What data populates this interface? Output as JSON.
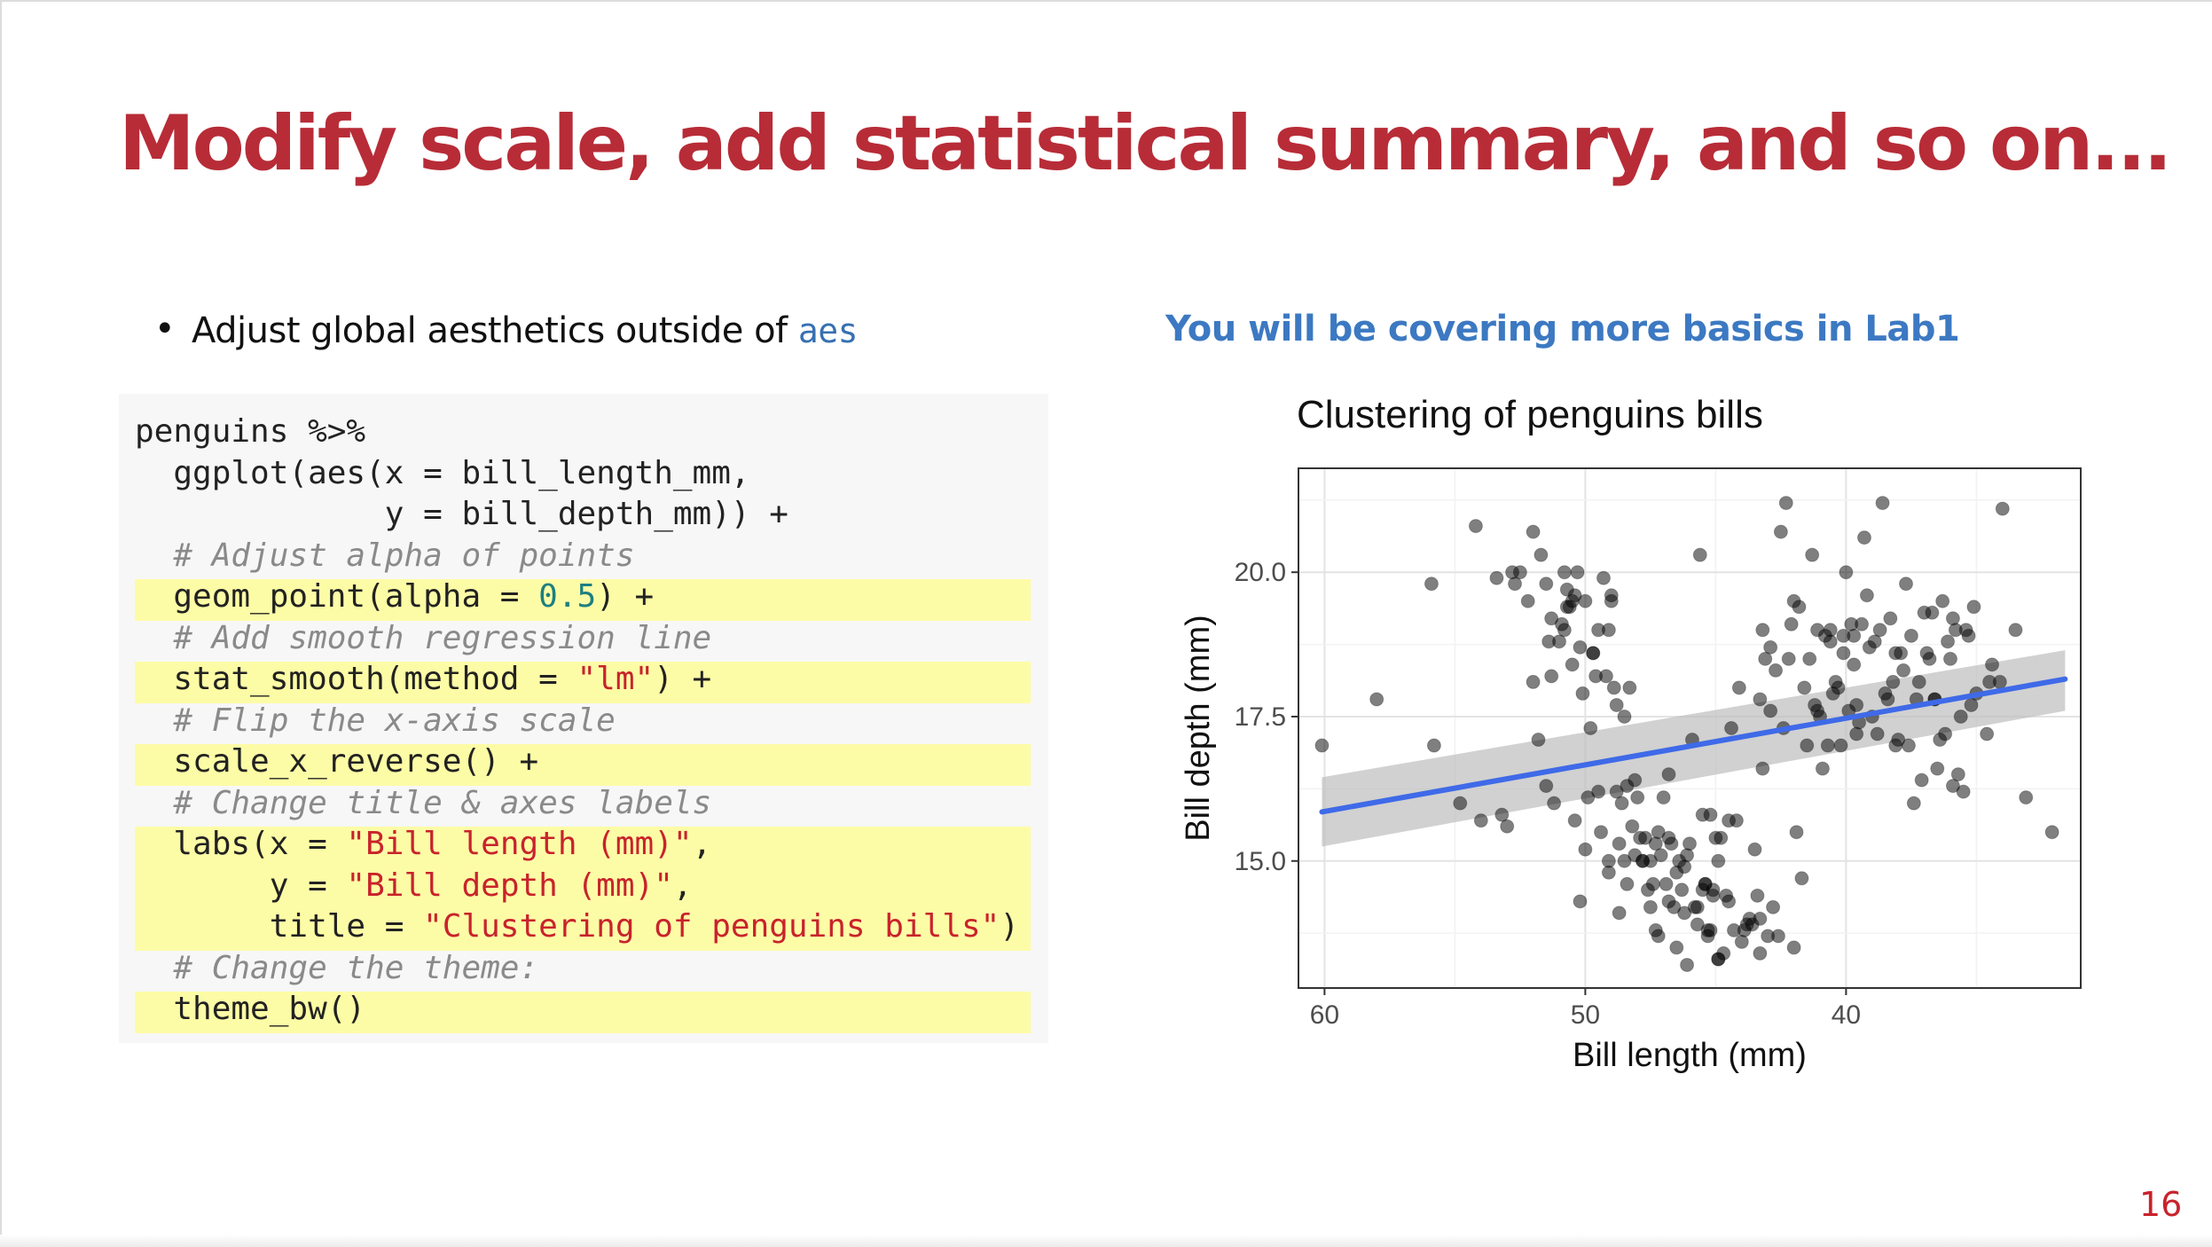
{
  "slide": {
    "title": "Modify scale, add statistical summary, and so on...",
    "page_number": "16"
  },
  "left": {
    "bullet_text": "Adjust global aesthetics outside of",
    "bullet_code": "aes",
    "code_lines": [
      {
        "parts": [
          {
            "t": "penguins %>%",
            "c": "plain"
          }
        ],
        "highlight": false
      },
      {
        "parts": [
          {
            "t": "  ggplot(aes(x = bill_length_mm,",
            "c": "plain"
          }
        ],
        "highlight": false
      },
      {
        "parts": [
          {
            "t": "             y = bill_depth_mm)) +",
            "c": "plain"
          }
        ],
        "highlight": false
      },
      {
        "parts": [
          {
            "t": "  # Adjust alpha of points",
            "c": "comment"
          }
        ],
        "highlight": false
      },
      {
        "parts": [
          {
            "t": "  geom_point(alpha = ",
            "c": "plain"
          },
          {
            "t": "0.5",
            "c": "number"
          },
          {
            "t": ") +",
            "c": "plain"
          }
        ],
        "highlight": true
      },
      {
        "parts": [
          {
            "t": "  # Add smooth regression line",
            "c": "comment"
          }
        ],
        "highlight": false
      },
      {
        "parts": [
          {
            "t": "  stat_smooth(method = ",
            "c": "plain"
          },
          {
            "t": "\"lm\"",
            "c": "string"
          },
          {
            "t": ") +",
            "c": "plain"
          }
        ],
        "highlight": true
      },
      {
        "parts": [
          {
            "t": "  # Flip the x-axis scale",
            "c": "comment"
          }
        ],
        "highlight": false
      },
      {
        "parts": [
          {
            "t": "  scale_x_reverse() +",
            "c": "plain"
          }
        ],
        "highlight": true
      },
      {
        "parts": [
          {
            "t": "  # Change title & axes labels",
            "c": "comment"
          }
        ],
        "highlight": false
      },
      {
        "parts": [
          {
            "t": "  labs(x = ",
            "c": "plain"
          },
          {
            "t": "\"Bill length (mm)\"",
            "c": "string"
          },
          {
            "t": ",",
            "c": "plain"
          }
        ],
        "highlight": true
      },
      {
        "parts": [
          {
            "t": "       y = ",
            "c": "plain"
          },
          {
            "t": "\"Bill depth (mm)\"",
            "c": "string"
          },
          {
            "t": ",",
            "c": "plain"
          }
        ],
        "highlight": true
      },
      {
        "parts": [
          {
            "t": "       title = ",
            "c": "plain"
          },
          {
            "t": "\"Clustering of penguins bills\"",
            "c": "string"
          },
          {
            "t": ")",
            "c": "plain"
          }
        ],
        "highlight": true
      },
      {
        "parts": [
          {
            "t": "  # Change the theme:",
            "c": "comment"
          }
        ],
        "highlight": false
      },
      {
        "parts": [
          {
            "t": "  theme_bw()",
            "c": "plain"
          }
        ],
        "highlight": true
      }
    ]
  },
  "right": {
    "heading": "You will be covering more basics in Lab1"
  },
  "colors": {
    "title": "#b72c37",
    "heading": "#3c79c2",
    "code_string": "#c8232c",
    "code_number": "#1e7f80",
    "code_comment": "#8a8a8a",
    "highlight": "#fdfca6",
    "smooth_line": "#3f6ae8",
    "ribbon": "#bdbdbd"
  },
  "chart_data": {
    "type": "scatter",
    "title": "Clustering of penguins bills",
    "xlabel": "Bill length (mm)",
    "ylabel": "Bill depth (mm)",
    "x_reversed": true,
    "xlim": [
      61,
      31.0
    ],
    "ylim": [
      12.8,
      21.8
    ],
    "x_ticks": [
      60,
      50,
      40
    ],
    "y_ticks": [
      15.0,
      17.5,
      20.0
    ],
    "y_tick_labels": [
      "15.0",
      "17.5",
      "20.0"
    ],
    "grid": true,
    "point_alpha": 0.5,
    "smooth": {
      "method": "lm",
      "x": [
        60.1,
        31.6
      ],
      "y": [
        15.85,
        18.15
      ],
      "ci_upper": [
        16.45,
        18.65
      ],
      "ci_lower": [
        15.25,
        17.6
      ]
    },
    "points": [
      [
        60.1,
        17.0
      ],
      [
        58.0,
        17.8
      ],
      [
        55.9,
        19.8
      ],
      [
        55.8,
        17.0
      ],
      [
        54.8,
        16.0
      ],
      [
        54.2,
        20.8
      ],
      [
        54.0,
        15.7
      ],
      [
        53.4,
        19.9
      ],
      [
        53.2,
        15.8
      ],
      [
        53.0,
        15.6
      ],
      [
        52.8,
        20.0
      ],
      [
        52.5,
        20.0
      ],
      [
        52.2,
        19.5
      ],
      [
        52.0,
        20.7
      ],
      [
        51.8,
        17.1
      ],
      [
        51.7,
        20.3
      ],
      [
        51.5,
        19.8
      ],
      [
        51.4,
        18.8
      ],
      [
        51.3,
        19.2
      ],
      [
        51.2,
        16.0
      ],
      [
        51.0,
        18.8
      ],
      [
        50.9,
        19.1
      ],
      [
        50.8,
        20.0
      ],
      [
        50.7,
        19.7
      ],
      [
        50.6,
        19.4
      ],
      [
        50.5,
        19.5
      ],
      [
        50.4,
        15.7
      ],
      [
        50.3,
        20.0
      ],
      [
        50.2,
        18.7
      ],
      [
        50.1,
        17.9
      ],
      [
        50.0,
        19.5
      ],
      [
        49.9,
        16.1
      ],
      [
        49.8,
        17.3
      ],
      [
        49.7,
        18.6
      ],
      [
        49.6,
        18.2
      ],
      [
        49.5,
        19.0
      ],
      [
        49.4,
        15.5
      ],
      [
        49.3,
        19.9
      ],
      [
        49.2,
        18.2
      ],
      [
        49.1,
        19.0
      ],
      [
        49.0,
        19.5
      ],
      [
        48.9,
        18.0
      ],
      [
        48.8,
        17.7
      ],
      [
        48.7,
        15.3
      ],
      [
        48.6,
        16.0
      ],
      [
        48.5,
        17.5
      ],
      [
        48.4,
        16.3
      ],
      [
        48.3,
        18.0
      ],
      [
        48.2,
        15.6
      ],
      [
        48.1,
        16.4
      ],
      [
        48.0,
        16.1
      ],
      [
        47.9,
        15.4
      ],
      [
        47.8,
        15.0
      ],
      [
        47.7,
        15.4
      ],
      [
        47.6,
        14.5
      ],
      [
        47.5,
        15.0
      ],
      [
        47.4,
        14.6
      ],
      [
        47.3,
        13.8
      ],
      [
        47.2,
        15.5
      ],
      [
        47.1,
        15.1
      ],
      [
        47.0,
        16.1
      ],
      [
        46.9,
        14.6
      ],
      [
        46.8,
        16.5
      ],
      [
        46.7,
        15.3
      ],
      [
        46.6,
        14.2
      ],
      [
        46.5,
        14.8
      ],
      [
        46.4,
        15.0
      ],
      [
        46.3,
        14.5
      ],
      [
        46.2,
        14.1
      ],
      [
        46.1,
        15.1
      ],
      [
        46.0,
        15.3
      ],
      [
        45.9,
        17.1
      ],
      [
        45.8,
        14.2
      ],
      [
        45.7,
        13.9
      ],
      [
        45.6,
        20.3
      ],
      [
        45.5,
        15.8
      ],
      [
        45.4,
        14.6
      ],
      [
        45.3,
        13.7
      ],
      [
        45.2,
        15.8
      ],
      [
        45.1,
        14.5
      ],
      [
        45.0,
        15.4
      ],
      [
        44.9,
        13.3
      ],
      [
        44.8,
        15.4
      ],
      [
        44.7,
        13.4
      ],
      [
        44.6,
        14.4
      ],
      [
        44.5,
        15.7
      ],
      [
        44.4,
        17.3
      ],
      [
        44.3,
        13.8
      ],
      [
        44.2,
        15.7
      ],
      [
        44.1,
        18.0
      ],
      [
        44.0,
        13.6
      ],
      [
        43.9,
        13.8
      ],
      [
        43.8,
        13.9
      ],
      [
        43.7,
        14.0
      ],
      [
        43.6,
        13.9
      ],
      [
        43.5,
        15.2
      ],
      [
        43.4,
        14.4
      ],
      [
        43.3,
        13.4
      ],
      [
        43.2,
        16.6
      ],
      [
        43.1,
        18.5
      ],
      [
        43.0,
        13.7
      ],
      [
        42.9,
        17.6
      ],
      [
        42.8,
        14.2
      ],
      [
        42.7,
        18.3
      ],
      [
        42.6,
        13.7
      ],
      [
        42.5,
        20.7
      ],
      [
        42.4,
        17.3
      ],
      [
        42.3,
        21.2
      ],
      [
        42.2,
        18.5
      ],
      [
        42.1,
        19.1
      ],
      [
        42.0,
        13.5
      ],
      [
        41.9,
        15.5
      ],
      [
        41.8,
        19.4
      ],
      [
        41.7,
        14.7
      ],
      [
        41.6,
        18.0
      ],
      [
        41.5,
        17.0
      ],
      [
        41.4,
        18.5
      ],
      [
        41.3,
        20.3
      ],
      [
        41.2,
        17.7
      ],
      [
        41.1,
        19.0
      ],
      [
        41.0,
        17.5
      ],
      [
        40.9,
        16.6
      ],
      [
        40.8,
        18.9
      ],
      [
        40.7,
        17.0
      ],
      [
        40.6,
        19.0
      ],
      [
        40.5,
        17.9
      ],
      [
        40.4,
        18.1
      ],
      [
        40.3,
        18.0
      ],
      [
        40.2,
        17.0
      ],
      [
        40.1,
        18.9
      ],
      [
        40.0,
        20.0
      ],
      [
        39.9,
        17.6
      ],
      [
        39.8,
        19.1
      ],
      [
        39.7,
        18.9
      ],
      [
        39.6,
        17.2
      ],
      [
        39.5,
        17.4
      ],
      [
        39.4,
        19.1
      ],
      [
        39.3,
        20.6
      ],
      [
        39.2,
        19.6
      ],
      [
        39.1,
        18.7
      ],
      [
        39.0,
        17.5
      ],
      [
        38.9,
        18.8
      ],
      [
        38.8,
        17.2
      ],
      [
        38.7,
        19.0
      ],
      [
        38.6,
        21.2
      ],
      [
        38.5,
        17.9
      ],
      [
        38.4,
        17.8
      ],
      [
        38.3,
        19.2
      ],
      [
        38.2,
        18.1
      ],
      [
        38.1,
        17.0
      ],
      [
        38.0,
        17.1
      ],
      [
        37.9,
        18.6
      ],
      [
        37.8,
        18.3
      ],
      [
        37.7,
        19.8
      ],
      [
        37.6,
        17.0
      ],
      [
        37.5,
        18.9
      ],
      [
        37.4,
        16.0
      ],
      [
        37.3,
        17.8
      ],
      [
        37.2,
        18.1
      ],
      [
        37.1,
        16.4
      ],
      [
        37.0,
        19.3
      ],
      [
        36.9,
        18.6
      ],
      [
        36.8,
        18.5
      ],
      [
        36.7,
        19.3
      ],
      [
        36.6,
        17.8
      ],
      [
        36.5,
        16.6
      ],
      [
        36.4,
        17.1
      ],
      [
        36.3,
        19.5
      ],
      [
        36.2,
        17.2
      ],
      [
        36.1,
        18.8
      ],
      [
        36.0,
        18.5
      ],
      [
        35.9,
        19.2
      ],
      [
        35.8,
        19.0
      ],
      [
        35.7,
        16.5
      ],
      [
        35.6,
        17.5
      ],
      [
        35.5,
        16.2
      ],
      [
        35.4,
        19.0
      ],
      [
        35.3,
        18.9
      ],
      [
        35.2,
        17.7
      ],
      [
        35.1,
        19.4
      ],
      [
        35.0,
        17.9
      ],
      [
        34.6,
        17.2
      ],
      [
        34.5,
        18.1
      ],
      [
        34.4,
        18.4
      ],
      [
        34.1,
        18.1
      ],
      [
        34.0,
        21.1
      ],
      [
        33.5,
        19.0
      ],
      [
        33.1,
        16.1
      ],
      [
        32.1,
        15.5
      ],
      [
        35.9,
        16.3
      ],
      [
        42.9,
        18.7
      ],
      [
        43.3,
        17.8
      ],
      [
        42.0,
        19.5
      ],
      [
        40.1,
        18.6
      ],
      [
        39.6,
        17.7
      ],
      [
        38.1,
        18.6
      ],
      [
        36.6,
        17.8
      ],
      [
        41.1,
        17.6
      ],
      [
        40.6,
        18.8
      ],
      [
        39.7,
        18.4
      ],
      [
        43.2,
        19.0
      ],
      [
        46.8,
        15.4
      ],
      [
        47.5,
        14.2
      ],
      [
        45.5,
        14.5
      ],
      [
        44.9,
        15.0
      ],
      [
        48.4,
        14.6
      ],
      [
        49.1,
        14.8
      ],
      [
        48.7,
        14.1
      ],
      [
        45.2,
        13.8
      ],
      [
        46.5,
        13.5
      ],
      [
        45.1,
        14.4
      ],
      [
        46.2,
        14.9
      ],
      [
        47.3,
        15.3
      ],
      [
        44.5,
        14.3
      ],
      [
        48.5,
        15.0
      ],
      [
        45.3,
        13.8
      ],
      [
        46.1,
        13.2
      ],
      [
        47.8,
        15.0
      ],
      [
        49.5,
        16.2
      ],
      [
        48.1,
        15.1
      ],
      [
        50.0,
        15.2
      ],
      [
        50.2,
        14.3
      ],
      [
        49.1,
        15.0
      ],
      [
        48.8,
        16.2
      ],
      [
        47.2,
        13.7
      ],
      [
        46.8,
        14.3
      ],
      [
        45.7,
        14.2
      ],
      [
        44.9,
        13.3
      ],
      [
        43.3,
        14.0
      ],
      [
        45.4,
        14.6
      ],
      [
        51.3,
        18.2
      ],
      [
        52.7,
        19.8
      ],
      [
        51.5,
        16.3
      ],
      [
        49.0,
        19.6
      ],
      [
        50.5,
        18.4
      ],
      [
        50.4,
        19.6
      ],
      [
        50.8,
        19.0
      ],
      [
        52.0,
        18.1
      ],
      [
        50.7,
        19.4
      ],
      [
        49.7,
        18.6
      ]
    ]
  }
}
